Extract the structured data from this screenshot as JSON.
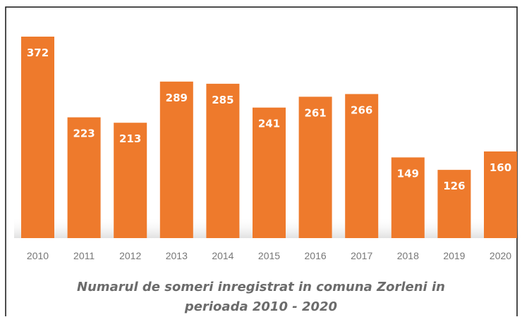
{
  "chart_data": {
    "type": "bar",
    "title": "Numarul de someri inregistrat in comuna Zorleni in perioada 2010 - 2020",
    "categories": [
      "2010",
      "2011",
      "2012",
      "2013",
      "2014",
      "2015",
      "2016",
      "2017",
      "2018",
      "2019",
      "2020"
    ],
    "values": [
      372,
      223,
      213,
      289,
      285,
      241,
      261,
      266,
      149,
      126,
      160
    ],
    "color": "#ee7a2c"
  }
}
